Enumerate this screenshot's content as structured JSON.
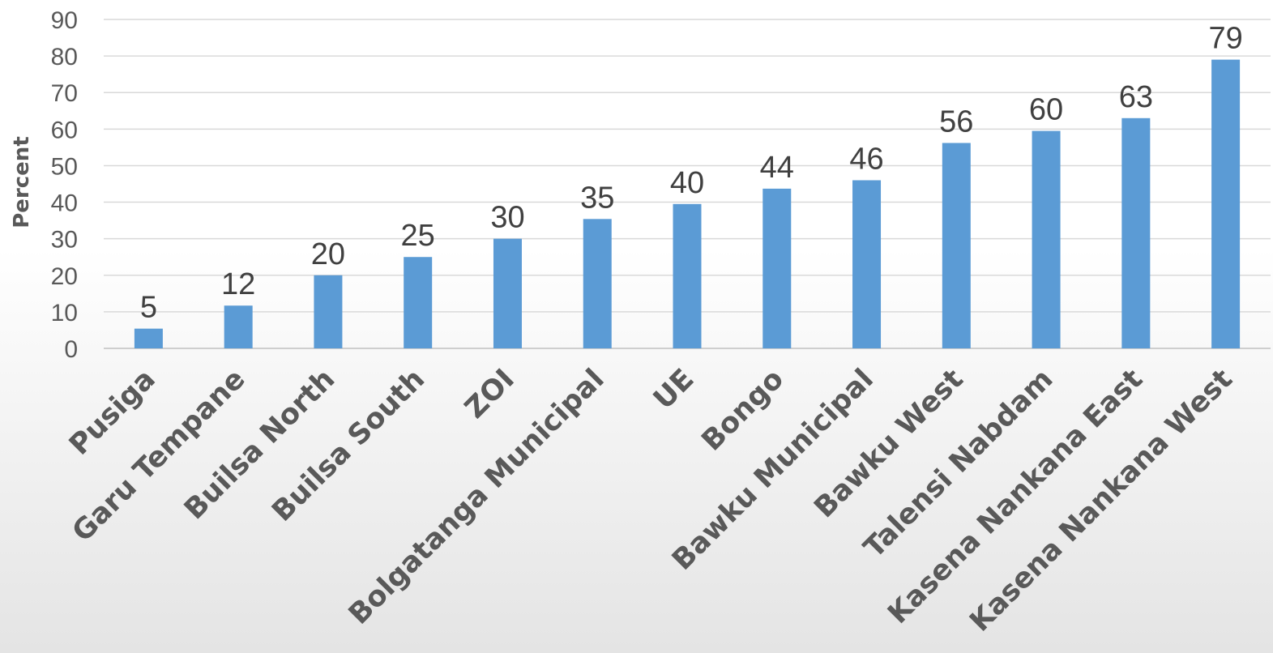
{
  "chart_data": {
    "type": "bar",
    "title": "",
    "xlabel": "",
    "ylabel": "Percent",
    "ylim": [
      0,
      90
    ],
    "yticks": [
      0,
      10,
      20,
      30,
      40,
      50,
      60,
      70,
      80,
      90
    ],
    "grid": true,
    "legend": "none",
    "bar_color": "#5b9bd5",
    "categories": [
      "Pusiga",
      "Garu Tempane",
      "Builsa North",
      "Builsa South",
      "ZOI",
      "Bolgatanga Municipal",
      "UE",
      "Bongo",
      "Bawku Municipal",
      "Bawku West",
      "Talensi Nabdam",
      "Kasena Nankana East",
      "Kasena Nankana West"
    ],
    "values": [
      5.4,
      11.7,
      20,
      25,
      30,
      35.4,
      39.5,
      43.7,
      46,
      56.2,
      59.5,
      63,
      79
    ],
    "data_labels": [
      "5",
      "12",
      "20",
      "25",
      "30",
      "35",
      "40",
      "44",
      "46",
      "56",
      "60",
      "63",
      "79"
    ]
  }
}
